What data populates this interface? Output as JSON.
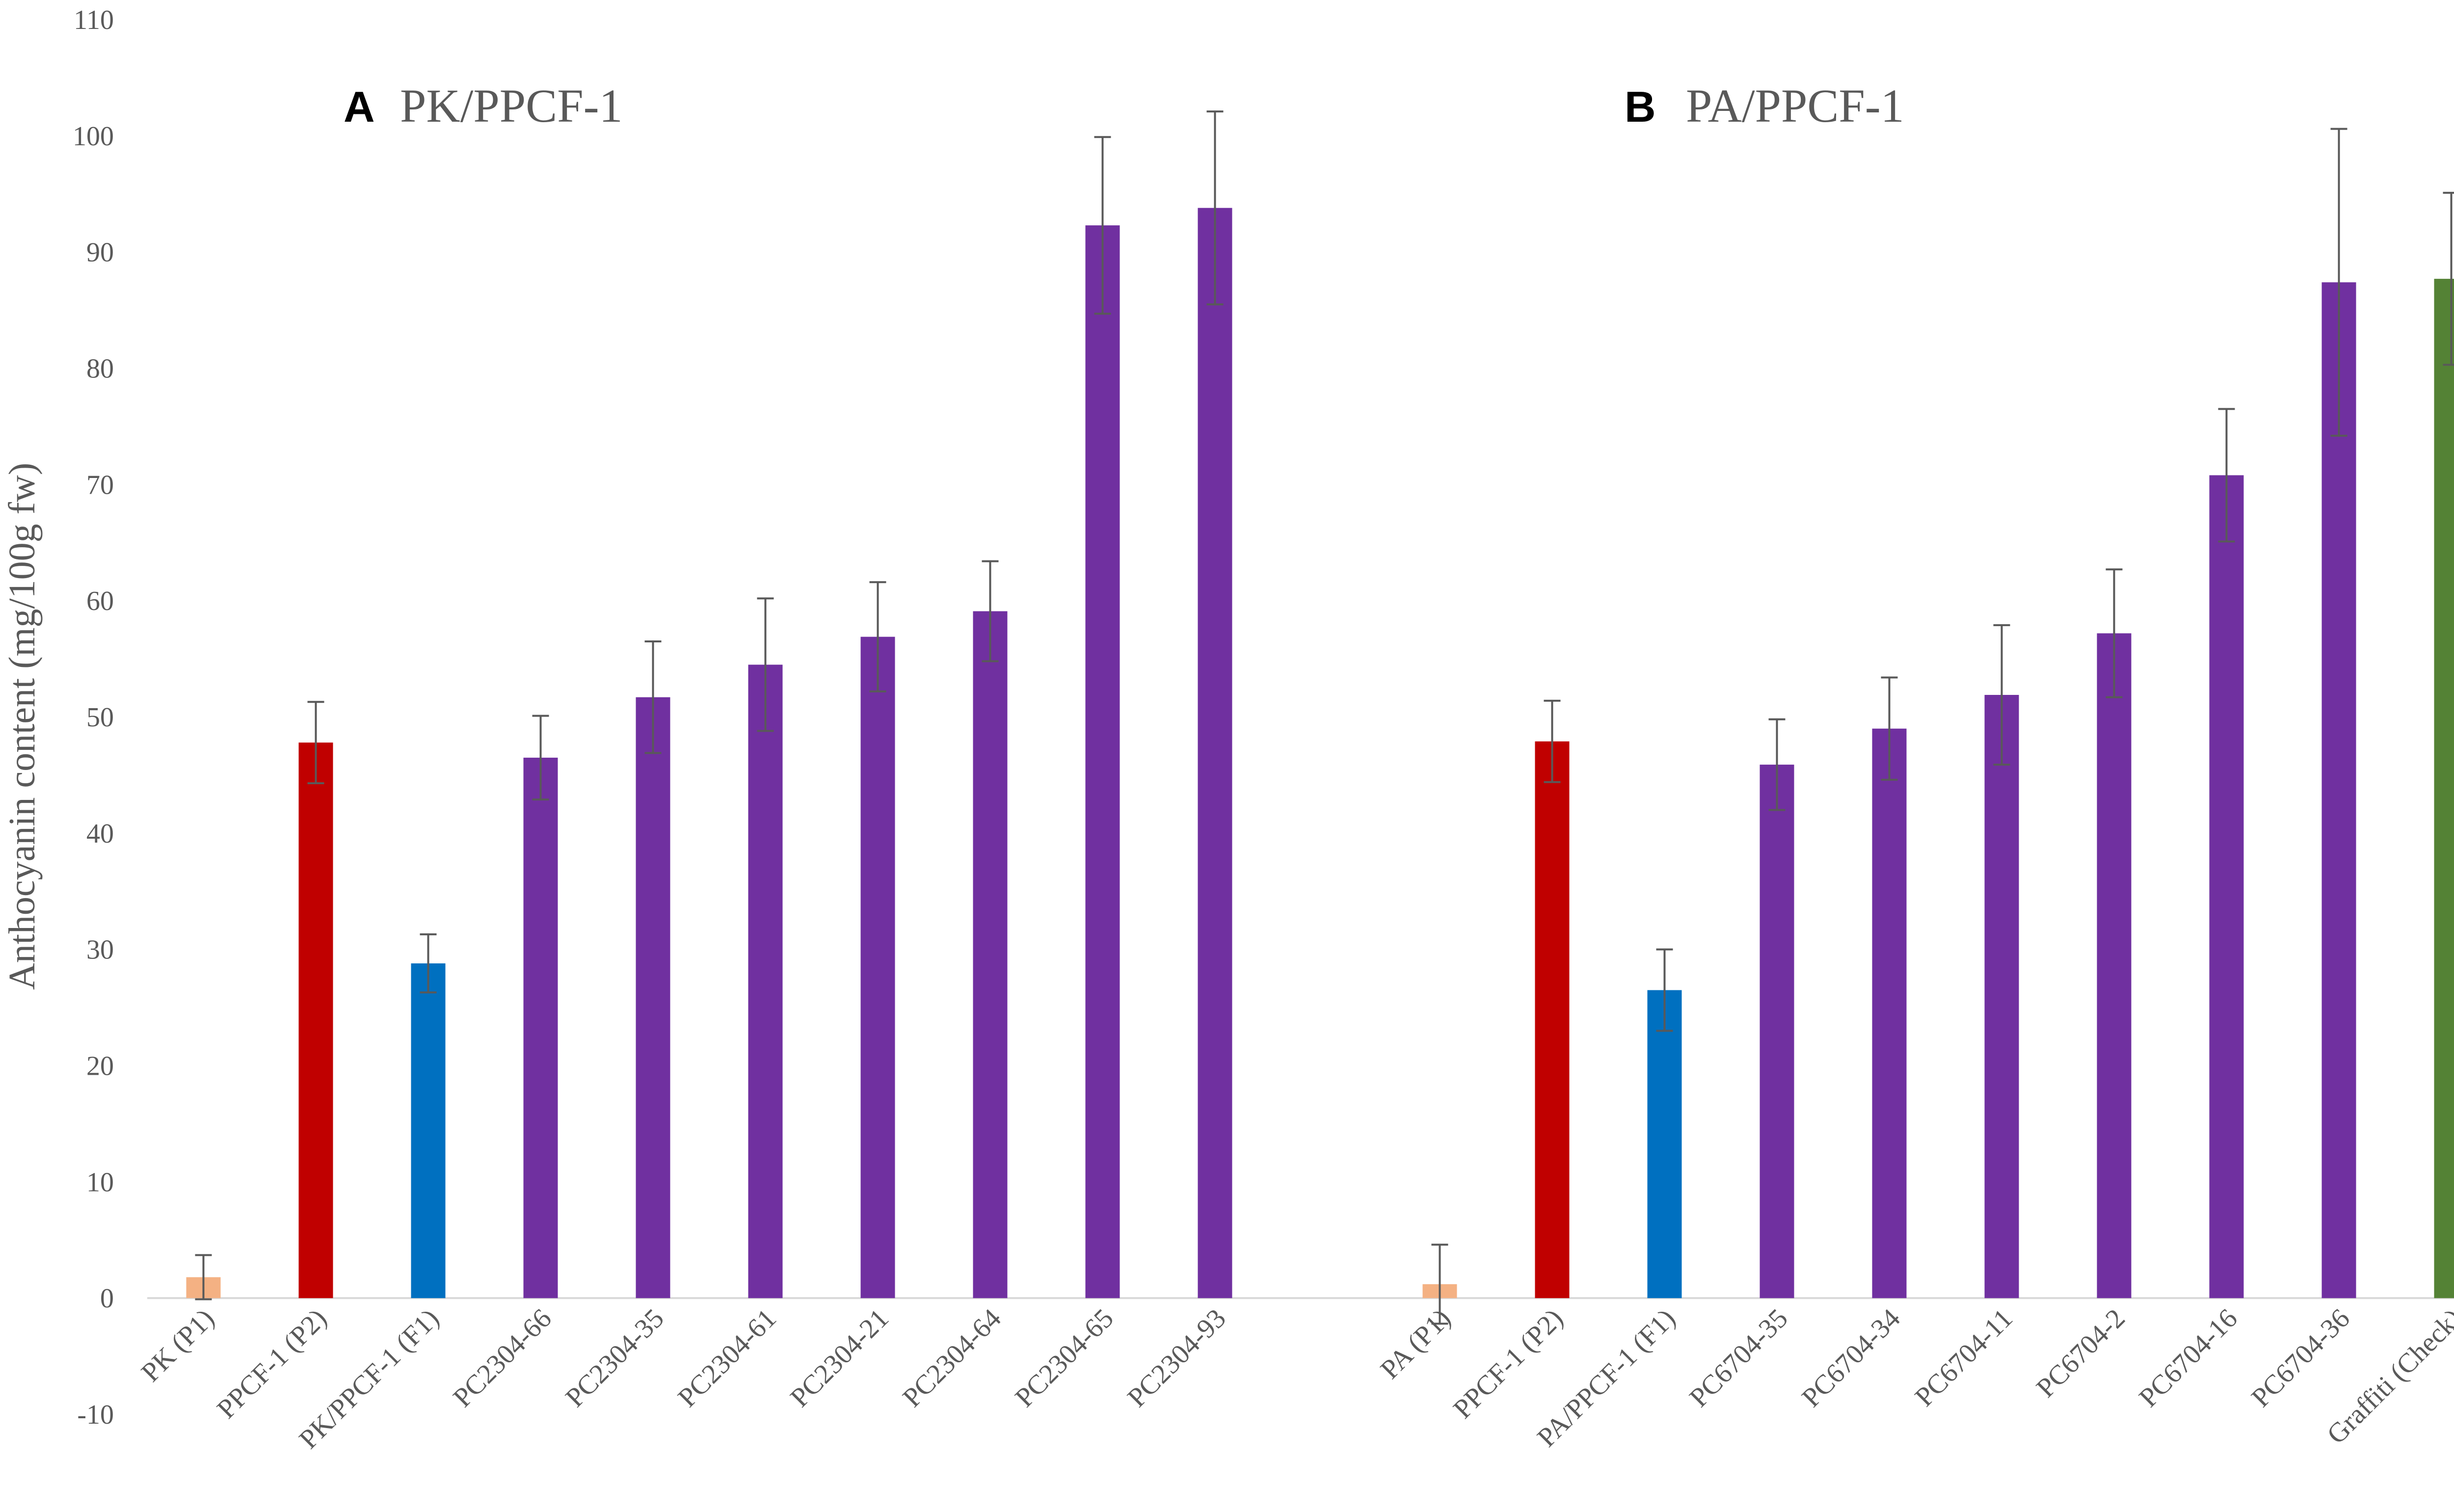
{
  "chart_data": {
    "type": "bar",
    "ylabel": "Anthocyanin content (mg/100g fw)",
    "ylim": [
      -10,
      110
    ],
    "yticks": [
      -10,
      0,
      10,
      20,
      30,
      40,
      50,
      60,
      70,
      80,
      90,
      100,
      110
    ],
    "grid": false,
    "colors": {
      "P1": "#f4b183",
      "P2": "#c00000",
      "F1": "#0070c0",
      "progeny": "#7030a0",
      "check": "#548235",
      "error_bar": "#595959",
      "text": "#595959"
    },
    "panels": [
      {
        "letter": "A",
        "title": "PK/PPCF-1",
        "bars": [
          {
            "label": "PK (P1)",
            "value": 1.8,
            "error": 1.9,
            "group": "P1"
          },
          {
            "label": "PPCF-1 (P2)",
            "value": 47.8,
            "error": 3.5,
            "group": "P2"
          },
          {
            "label": "PK/PPCF-1 (F1)",
            "value": 28.8,
            "error": 2.5,
            "group": "F1"
          },
          {
            "label": "PC2304-66",
            "value": 46.5,
            "error": 3.6,
            "group": "progeny"
          },
          {
            "label": "PC2304-35",
            "value": 51.7,
            "error": 4.8,
            "group": "progeny"
          },
          {
            "label": "PC2304-61",
            "value": 54.5,
            "error": 5.7,
            "group": "progeny"
          },
          {
            "label": "PC2304-21",
            "value": 56.9,
            "error": 4.7,
            "group": "progeny"
          },
          {
            "label": "PC2304-64",
            "value": 59.1,
            "error": 4.3,
            "group": "progeny"
          },
          {
            "label": "PC2304-65",
            "value": 92.3,
            "error": 7.6,
            "group": "progeny"
          },
          {
            "label": "PC2304-93",
            "value": 93.8,
            "error": 8.3,
            "group": "progeny"
          }
        ]
      },
      {
        "letter": "B",
        "title": "PA/PPCF-1",
        "bars": [
          {
            "label": "PA (P1)",
            "value": 1.2,
            "error": 3.4,
            "group": "P1"
          },
          {
            "label": "PPCF-1 (P2)",
            "value": 47.9,
            "error": 3.5,
            "group": "P2"
          },
          {
            "label": "PA/PPCF-1 (F1)",
            "value": 26.5,
            "error": 3.5,
            "group": "F1"
          },
          {
            "label": "PC6704-35",
            "value": 45.9,
            "error": 3.9,
            "group": "progeny"
          },
          {
            "label": "PC6704-34",
            "value": 49.0,
            "error": 4.4,
            "group": "progeny"
          },
          {
            "label": "PC6704-11",
            "value": 51.9,
            "error": 6.0,
            "group": "progeny"
          },
          {
            "label": "PC6704-2",
            "value": 57.2,
            "error": 5.5,
            "group": "progeny"
          },
          {
            "label": "PC6704-16",
            "value": 70.8,
            "error": 5.7,
            "group": "progeny"
          },
          {
            "label": "PC6704-36",
            "value": 87.4,
            "error": 13.2,
            "group": "progeny"
          },
          {
            "label": "Graffiti (Check)",
            "value": 87.7,
            "error": 7.4,
            "group": "check"
          }
        ]
      }
    ]
  }
}
